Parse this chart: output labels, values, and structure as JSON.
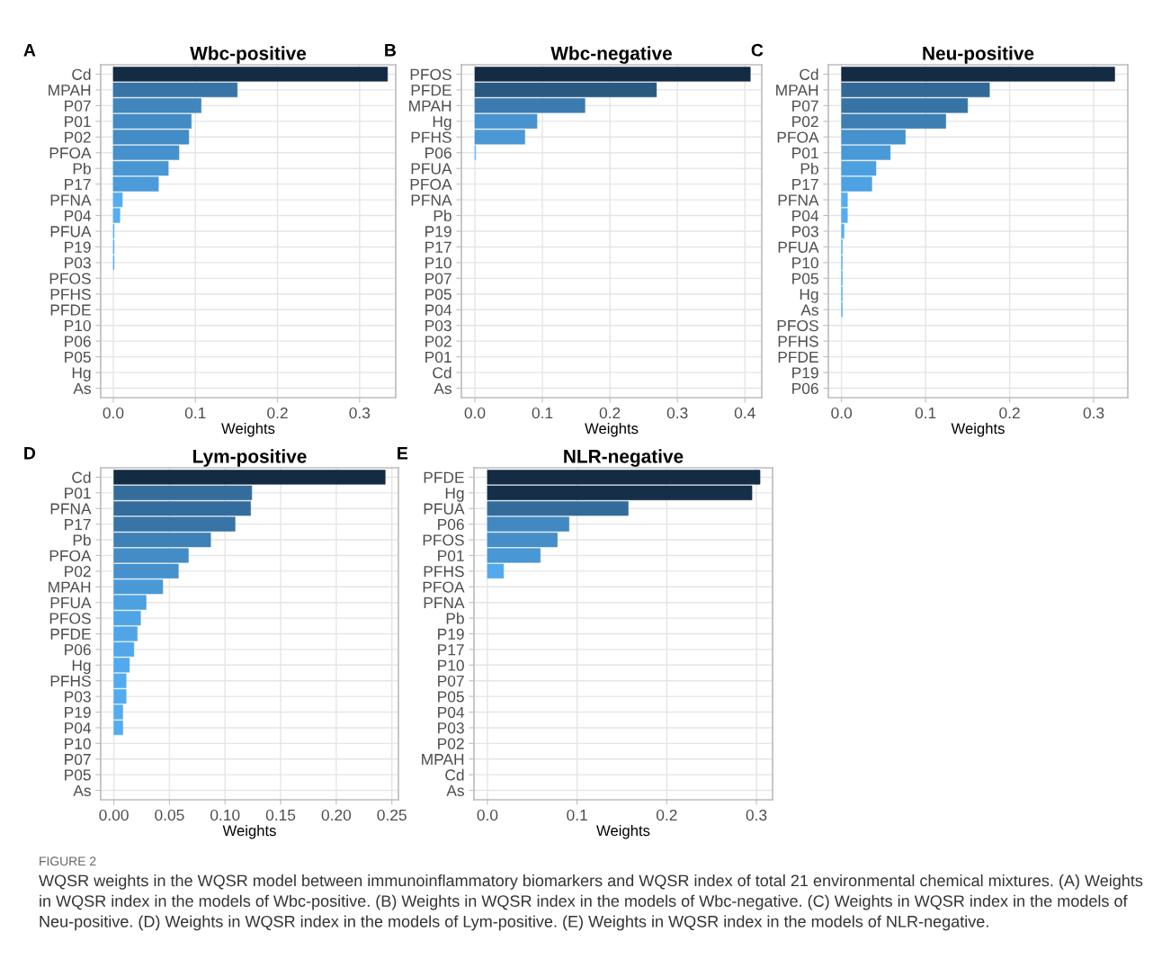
{
  "chart_data": [
    {
      "type": "bar",
      "orientation": "horizontal",
      "title": "Wbc-positive",
      "xlabel": "Weights",
      "grid": true,
      "annotations": [
        "A"
      ],
      "categories": [
        "Cd",
        "MPAH",
        "P07",
        "P01",
        "P02",
        "PFOA",
        "Pb",
        "P17",
        "PFNA",
        "P04",
        "PFUA",
        "P19",
        "P03",
        "PFOS",
        "PFHS",
        "PFDE",
        "P10",
        "P06",
        "P05",
        "Hg",
        "As"
      ],
      "values": [
        0.334,
        0.151,
        0.107,
        0.095,
        0.092,
        0.08,
        0.067,
        0.055,
        0.011,
        0.008,
        0.001,
        0.001,
        0.001,
        0,
        0,
        0,
        0,
        0,
        0,
        0,
        0
      ],
      "colors": [
        "#132b43",
        "#3874a6",
        "#4186bd",
        "#438bc4",
        "#448cc5",
        "#4691cc",
        "#4996d3",
        "#4b9bd9",
        "#54adf1",
        "#54aef3",
        "#56b1f7",
        "#56b1f7",
        "#56b1f7",
        "#56b1f7",
        "#56b1f7",
        "#56b1f7",
        "#56b1f7",
        "#56b1f7",
        "#56b1f7",
        "#56b1f7",
        "#56b1f7"
      ],
      "xlim": [
        -0.0153,
        0.344
      ],
      "xticks": [
        {
          "value": 0,
          "label": "0.0"
        },
        {
          "value": 0.1,
          "label": "0.1"
        },
        {
          "value": 0.2,
          "label": "0.2"
        },
        {
          "value": 0.3,
          "label": "0.3"
        }
      ]
    },
    {
      "type": "bar",
      "orientation": "horizontal",
      "title": "Wbc-negative",
      "xlabel": "Weights",
      "grid": true,
      "annotations": [
        "B"
      ],
      "categories": [
        "PFOS",
        "PFDE",
        "MPAH",
        "Hg",
        "PFHS",
        "P06",
        "PFUA",
        "PFOA",
        "PFNA",
        "Pb",
        "P19",
        "P17",
        "P10",
        "P07",
        "P05",
        "P04",
        "P03",
        "P02",
        "P01",
        "Cd",
        "As"
      ],
      "values": [
        0.408,
        0.269,
        0.163,
        0.092,
        0.074,
        0.001,
        0,
        0,
        0,
        0,
        0,
        0,
        0,
        0,
        0,
        0,
        0,
        0,
        0,
        0,
        0
      ],
      "colors": [
        "#132b43",
        "#2a5980",
        "#3b7baf",
        "#4793cf",
        "#4a99d6",
        "#56b1f7",
        "#56b1f7",
        "#56b1f7",
        "#56b1f7",
        "#56b1f7",
        "#56b1f7",
        "#56b1f7",
        "#56b1f7",
        "#56b1f7",
        "#56b1f7",
        "#56b1f7",
        "#56b1f7",
        "#56b1f7",
        "#56b1f7",
        "#56b1f7",
        "#56b1f7"
      ],
      "xlim": [
        -0.02,
        0.425
      ],
      "xticks": [
        {
          "value": 0,
          "label": "0.0"
        },
        {
          "value": 0.1,
          "label": "0.1"
        },
        {
          "value": 0.2,
          "label": "0.2"
        },
        {
          "value": 0.3,
          "label": "0.3"
        },
        {
          "value": 0.4,
          "label": "0.4"
        }
      ]
    },
    {
      "type": "bar",
      "orientation": "horizontal",
      "title": "Neu-positive",
      "xlabel": "Weights",
      "grid": true,
      "annotations": [
        "C"
      ],
      "categories": [
        "Cd",
        "MPAH",
        "P07",
        "P02",
        "PFOA",
        "P01",
        "Pb",
        "P17",
        "PFNA",
        "P04",
        "P03",
        "PFUA",
        "P10",
        "P05",
        "Hg",
        "As",
        "PFOS",
        "PFHS",
        "PFDE",
        "P19",
        "P06"
      ],
      "values": [
        0.325,
        0.176,
        0.15,
        0.124,
        0.076,
        0.058,
        0.041,
        0.036,
        0.007,
        0.007,
        0.003,
        0.001,
        0.001,
        0.001,
        0.001,
        0.001,
        0,
        0,
        0,
        0,
        0
      ],
      "colors": [
        "#132b43",
        "#326895",
        "#3773a4",
        "#3d7eb3",
        "#4692cd",
        "#4a99d7",
        "#4da0e0",
        "#4ea2e3",
        "#55aef3",
        "#55aef3",
        "#56b1f7",
        "#56b1f7",
        "#56b1f7",
        "#56b1f7",
        "#56b1f7",
        "#56b1f7",
        "#56b1f7",
        "#56b1f7",
        "#56b1f7",
        "#56b1f7",
        "#56b1f7"
      ],
      "xlim": [
        -0.0157,
        0.3406
      ],
      "xticks": [
        {
          "value": 0,
          "label": "0.0"
        },
        {
          "value": 0.1,
          "label": "0.1"
        },
        {
          "value": 0.2,
          "label": "0.2"
        },
        {
          "value": 0.3,
          "label": "0.3"
        }
      ]
    },
    {
      "type": "bar",
      "orientation": "horizontal",
      "title": "Lym-positive",
      "xlabel": "Weights",
      "grid": true,
      "annotations": [
        "D"
      ],
      "categories": [
        "Cd",
        "P01",
        "PFNA",
        "P17",
        "Pb",
        "PFOA",
        "P02",
        "MPAH",
        "PFUA",
        "PFOS",
        "PFDE",
        "P06",
        "Hg",
        "PFHS",
        "P03",
        "P19",
        "P04",
        "P10",
        "P07",
        "P05",
        "As"
      ],
      "values": [
        0.244,
        0.124,
        0.123,
        0.109,
        0.087,
        0.067,
        0.058,
        0.044,
        0.029,
        0.024,
        0.021,
        0.018,
        0.014,
        0.011,
        0.011,
        0.008,
        0.008,
        0,
        0,
        0,
        0
      ],
      "colors": [
        "#132b43",
        "#346d9c",
        "#346d9d",
        "#3875a6",
        "#3e81b7",
        "#448cc5",
        "#4691cc",
        "#4a99d7",
        "#4ea1e1",
        "#4fa4e5",
        "#50a5e8",
        "#51a7ea",
        "#52a9ed",
        "#53abef",
        "#53abef",
        "#54acf1",
        "#54acf1",
        "#56b1f7",
        "#56b1f7",
        "#56b1f7",
        "#56b1f7"
      ],
      "xlim": [
        -0.0118,
        0.2559
      ],
      "xticks": [
        {
          "value": 0,
          "label": "0.00"
        },
        {
          "value": 0.05,
          "label": "0.05"
        },
        {
          "value": 0.1,
          "label": "0.10"
        },
        {
          "value": 0.15,
          "label": "0.15"
        },
        {
          "value": 0.2,
          "label": "0.20"
        },
        {
          "value": 0.25,
          "label": "0.25"
        }
      ]
    },
    {
      "type": "bar",
      "orientation": "horizontal",
      "title": "NLR-negative",
      "xlabel": "Weights",
      "grid": true,
      "annotations": [
        "E",
        "FIGURE 2",
        "WQSR weights in the WQSR model between immunoinflammatory biomarkers and WQSR index of total 21 environmental chemical mixtures. (A) Weights in WQSR index in the models of Wbc-positive. (B) Weights in WQSR index in the models of Wbc-negative. (C) Weights in WQSR index in the models of Neu-positive. (D) Weights in WQSR index in the models of Lym-positive. (E) Weights in WQSR index in the models of NLR-negative."
      ],
      "categories": [
        "PFDE",
        "Hg",
        "PFUA",
        "P06",
        "PFOS",
        "P01",
        "PFHS",
        "PFOA",
        "PFNA",
        "Pb",
        "P19",
        "P17",
        "P10",
        "P07",
        "P05",
        "P04",
        "P03",
        "P02",
        "MPAH",
        "Cd",
        "As"
      ],
      "values": [
        0.304,
        0.295,
        0.157,
        0.091,
        0.078,
        0.059,
        0.018,
        0,
        0,
        0,
        0,
        0,
        0,
        0,
        0,
        0,
        0,
        0,
        0,
        0,
        0
      ],
      "colors": [
        "#132b43",
        "#152f48",
        "#336c9a",
        "#4289c1",
        "#458ec9",
        "#4997d4",
        "#52a9ed",
        "#56b1f7",
        "#56b1f7",
        "#56b1f7",
        "#56b1f7",
        "#56b1f7",
        "#56b1f7",
        "#56b1f7",
        "#56b1f7",
        "#56b1f7",
        "#56b1f7",
        "#56b1f7",
        "#56b1f7",
        "#56b1f7",
        "#56b1f7"
      ],
      "xlim": [
        -0.015,
        0.318
      ],
      "xticks": [
        {
          "value": 0,
          "label": "0.0"
        },
        {
          "value": 0.1,
          "label": "0.1"
        },
        {
          "value": 0.2,
          "label": "0.2"
        },
        {
          "value": 0.3,
          "label": "0.3"
        }
      ]
    }
  ]
}
